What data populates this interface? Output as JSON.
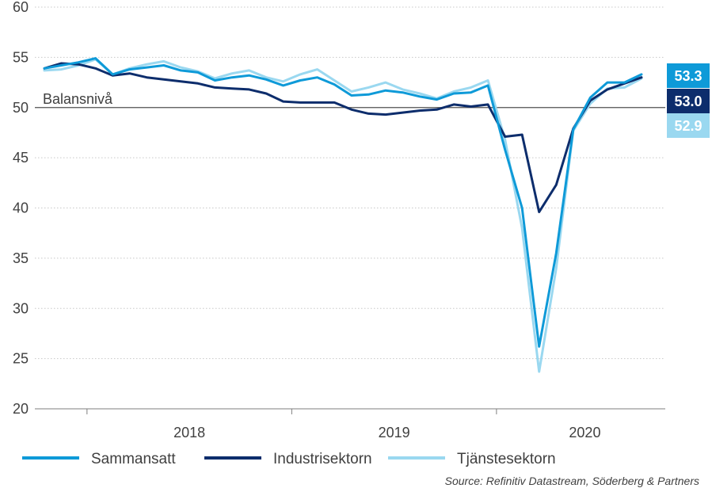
{
  "chart_data": {
    "type": "line",
    "ylim": [
      20,
      60
    ],
    "yticks": [
      "20",
      "25",
      "30",
      "35",
      "40",
      "45",
      "50",
      "55",
      "60"
    ],
    "x_labels": [
      "2018",
      "2019",
      "2020"
    ],
    "reference_line": {
      "value": 50,
      "label": "Balansnivå"
    },
    "grid": "horizontal-dotted",
    "legend_position": "bottom",
    "source": "Source: Refinitiv Datastream, Söderberg & Partners",
    "series": [
      {
        "name": "Tjänstesektorn",
        "color": "#9ad8f0",
        "end_label": "52.9",
        "values": [
          53.7,
          53.8,
          54.2,
          54.8,
          53.3,
          53.9,
          54.3,
          54.6,
          54.0,
          53.6,
          52.9,
          53.4,
          53.7,
          53.0,
          52.6,
          53.3,
          53.8,
          52.7,
          51.6,
          52.0,
          52.5,
          51.8,
          51.4,
          50.9,
          51.6,
          52.0,
          52.7,
          46.8,
          38.0,
          23.7,
          34.0,
          47.7,
          50.4,
          51.9,
          52.0,
          52.9
        ]
      },
      {
        "name": "Industrisektorn",
        "color": "#0d2d6c",
        "end_label": "53.0",
        "values": [
          53.9,
          54.4,
          54.3,
          53.9,
          53.2,
          53.4,
          53.0,
          52.8,
          52.6,
          52.4,
          52.0,
          51.9,
          51.8,
          51.4,
          50.6,
          50.5,
          50.5,
          50.5,
          49.8,
          49.4,
          49.3,
          49.5,
          49.7,
          49.8,
          50.3,
          50.1,
          50.3,
          47.1,
          47.3,
          39.6,
          42.3,
          47.9,
          50.7,
          51.8,
          52.4,
          53.0
        ]
      },
      {
        "name": "Sammansatt",
        "color": "#0e9ad8",
        "end_label": "53.3",
        "values": [
          53.9,
          54.2,
          54.5,
          54.9,
          53.3,
          53.8,
          54.0,
          54.2,
          53.7,
          53.5,
          52.7,
          53.0,
          53.2,
          52.8,
          52.2,
          52.7,
          53.0,
          52.3,
          51.2,
          51.3,
          51.7,
          51.5,
          51.1,
          50.8,
          51.4,
          51.5,
          52.2,
          45.8,
          40.0,
          26.2,
          35.5,
          47.8,
          51.0,
          52.5,
          52.5,
          53.3
        ]
      }
    ]
  }
}
